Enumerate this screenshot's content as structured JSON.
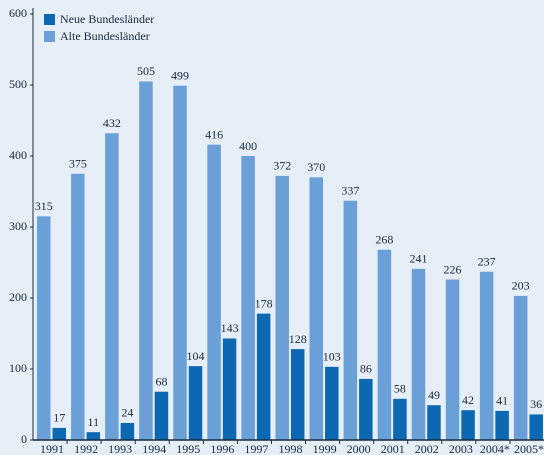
{
  "chart_data": {
    "type": "bar",
    "categories": [
      "1991",
      "1992",
      "1993",
      "1994",
      "1995",
      "1996",
      "1997",
      "1998",
      "1999",
      "2000",
      "2001",
      "2002",
      "2003",
      "2004*",
      "2005*"
    ],
    "series": [
      {
        "name": "Neue Bundesländer",
        "color": "#0c68b3",
        "values": [
          17,
          11,
          24,
          68,
          104,
          143,
          178,
          128,
          103,
          86,
          58,
          49,
          42,
          41,
          36
        ]
      },
      {
        "name": "Alte Bundesländer",
        "color": "#6a9fd8",
        "values": [
          315,
          375,
          432,
          505,
          499,
          416,
          400,
          372,
          370,
          337,
          268,
          241,
          226,
          237,
          203
        ]
      }
    ],
    "ylim": [
      0,
      600
    ],
    "yticks": [
      0,
      100,
      200,
      300,
      400,
      500,
      600
    ],
    "grid": false,
    "legend": "top-left"
  }
}
